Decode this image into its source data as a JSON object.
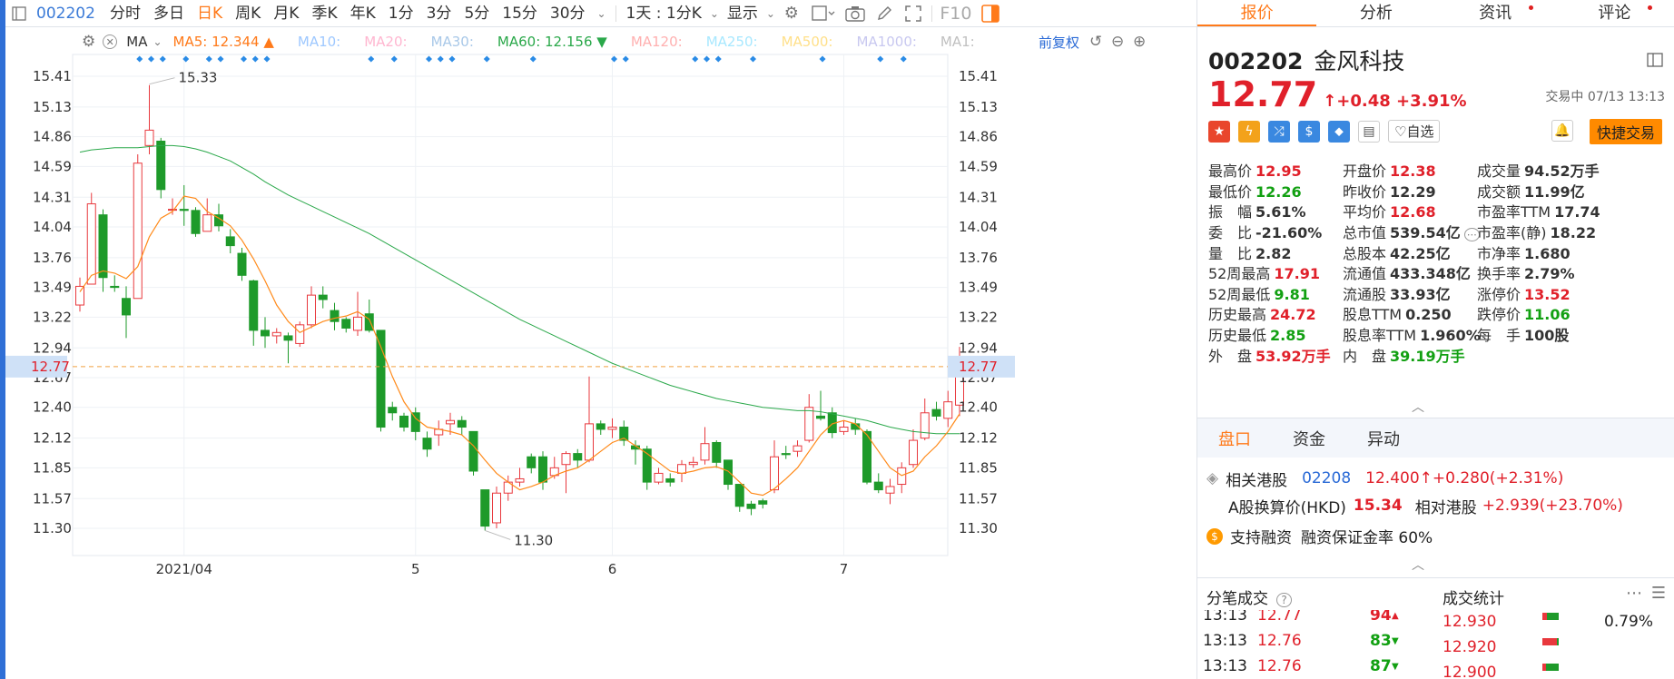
{
  "toolbar": {
    "code": "002202",
    "tabs": [
      "分时",
      "多日",
      "日K",
      "周K",
      "月K",
      "季K",
      "年K",
      "1分",
      "3分",
      "5分",
      "15分",
      "30分"
    ],
    "active_tab": "日K",
    "period_select": "1天 : 1分K",
    "display_label": "显示",
    "f10_label": "F10"
  },
  "ma_row": {
    "ma_select": "MA",
    "items": [
      {
        "label": "MA5: 12.344",
        "color": "#ff7a1a",
        "arrow": "▲"
      },
      {
        "label": "MA10:",
        "color": "#9ec8ff"
      },
      {
        "label": "MA20:",
        "color": "#ffb6d0"
      },
      {
        "label": "MA30:",
        "color": "#a8c8e8"
      },
      {
        "label": "MA60: 12.156",
        "color": "#2aa84a",
        "arrow": "▼"
      },
      {
        "label": "MA120:",
        "color": "#ffb0b0"
      },
      {
        "label": "MA250:",
        "color": "#a8e8ff"
      },
      {
        "label": "MA500:",
        "color": "#ffe08a"
      },
      {
        "label": "MA1000:",
        "color": "#c8c8f0"
      },
      {
        "label": "MA1:",
        "color": "#c0c0c0"
      }
    ],
    "adjust": "前复权"
  },
  "chart_data": {
    "type": "candlestick",
    "y_ticks": [
      15.41,
      15.13,
      14.86,
      14.59,
      14.31,
      14.04,
      13.76,
      13.49,
      13.22,
      12.94,
      12.67,
      12.4,
      12.12,
      11.85,
      11.57,
      11.3
    ],
    "current_price": 12.77,
    "current_price_label": "12.77",
    "x_labels": [
      {
        "label": "2021/04",
        "index": 9
      },
      {
        "label": "5",
        "index": 29
      },
      {
        "label": "6",
        "index": 46
      },
      {
        "label": "7",
        "index": 66
      }
    ],
    "high_marker": "15.33",
    "low_marker": "11.30",
    "candles": [
      [
        13.33,
        13.5,
        13.27,
        13.58
      ],
      [
        13.52,
        14.25,
        13.52,
        14.35
      ],
      [
        14.15,
        13.58,
        13.45,
        14.2
      ],
      [
        13.5,
        13.49,
        13.45,
        13.6
      ],
      [
        13.39,
        13.24,
        13.03,
        13.5
      ],
      [
        13.39,
        14.62,
        13.39,
        14.7
      ],
      [
        14.78,
        14.92,
        14.7,
        15.33
      ],
      [
        14.82,
        14.38,
        14.3,
        14.85
      ],
      [
        14.2,
        14.2,
        14.15,
        14.3
      ],
      [
        14.2,
        14.19,
        14.05,
        14.42
      ],
      [
        14.19,
        13.98,
        13.95,
        14.22
      ],
      [
        14.0,
        14.15,
        14.0,
        14.3
      ],
      [
        14.15,
        14.05,
        14.0,
        14.25
      ],
      [
        13.95,
        13.87,
        13.8,
        14.02
      ],
      [
        13.8,
        13.6,
        13.55,
        13.85
      ],
      [
        13.55,
        13.1,
        12.96,
        13.56
      ],
      [
        13.1,
        13.05,
        12.94,
        13.22
      ],
      [
        13.05,
        13.08,
        12.98,
        13.12
      ],
      [
        13.05,
        13.01,
        12.8,
        13.08
      ],
      [
        12.98,
        13.15,
        12.95,
        13.18
      ],
      [
        13.15,
        13.42,
        13.12,
        13.5
      ],
      [
        13.42,
        13.38,
        13.3,
        13.5
      ],
      [
        13.28,
        13.18,
        13.1,
        13.35
      ],
      [
        13.2,
        13.12,
        13.08,
        13.22
      ],
      [
        13.1,
        13.22,
        13.05,
        13.45
      ],
      [
        13.25,
        13.1,
        13.08,
        13.38
      ],
      [
        13.1,
        12.22,
        12.18,
        13.1
      ],
      [
        12.4,
        12.35,
        12.28,
        12.45
      ],
      [
        12.32,
        12.22,
        12.18,
        12.35
      ],
      [
        12.35,
        12.18,
        12.1,
        12.4
      ],
      [
        12.12,
        12.02,
        11.95,
        12.18
      ],
      [
        12.15,
        12.2,
        12.05,
        12.28
      ],
      [
        12.25,
        12.28,
        12.15,
        12.35
      ],
      [
        12.28,
        12.22,
        12.15,
        12.32
      ],
      [
        12.18,
        11.82,
        11.78,
        12.18
      ],
      [
        11.65,
        11.32,
        11.28,
        11.65
      ],
      [
        11.35,
        11.62,
        11.3,
        11.68
      ],
      [
        11.62,
        11.72,
        11.55,
        11.78
      ],
      [
        11.72,
        11.75,
        11.68,
        11.85
      ],
      [
        11.95,
        11.85,
        11.8,
        11.98
      ],
      [
        11.95,
        11.72,
        11.65,
        12.0
      ],
      [
        11.78,
        11.85,
        11.75,
        11.95
      ],
      [
        11.88,
        11.98,
        11.62,
        12.0
      ],
      [
        11.98,
        11.92,
        11.85,
        12.02
      ],
      [
        11.92,
        12.25,
        11.9,
        12.68
      ],
      [
        12.25,
        12.2,
        12.15,
        12.28
      ],
      [
        12.2,
        12.22,
        12.12,
        12.3
      ],
      [
        12.22,
        12.1,
        12.05,
        12.28
      ],
      [
        12.05,
        12.02,
        11.88,
        12.1
      ],
      [
        12.02,
        11.72,
        11.65,
        12.05
      ],
      [
        11.72,
        11.8,
        11.7,
        11.85
      ],
      [
        11.75,
        11.72,
        11.68,
        11.8
      ],
      [
        11.8,
        11.88,
        11.72,
        11.92
      ],
      [
        11.88,
        11.9,
        11.85,
        11.95
      ],
      [
        11.92,
        12.07,
        11.88,
        12.22
      ],
      [
        12.08,
        11.9,
        11.85,
        12.1
      ],
      [
        11.92,
        11.7,
        11.65,
        11.92
      ],
      [
        11.7,
        11.5,
        11.45,
        11.7
      ],
      [
        11.52,
        11.48,
        11.42,
        11.55
      ],
      [
        11.55,
        11.52,
        11.48,
        11.57
      ],
      [
        11.65,
        11.95,
        11.62,
        12.1
      ],
      [
        11.98,
        11.97,
        11.93,
        12.05
      ],
      [
        12.0,
        12.05,
        11.95,
        12.1
      ],
      [
        12.1,
        12.4,
        12.08,
        12.52
      ],
      [
        12.32,
        12.3,
        12.28,
        12.55
      ],
      [
        12.35,
        12.17,
        12.12,
        12.4
      ],
      [
        12.18,
        12.22,
        12.15,
        12.28
      ],
      [
        12.25,
        12.2,
        12.15,
        12.3
      ],
      [
        12.18,
        11.72,
        11.7,
        12.2
      ],
      [
        11.72,
        11.65,
        11.62,
        11.8
      ],
      [
        11.62,
        11.68,
        11.52,
        11.75
      ],
      [
        11.7,
        11.85,
        11.62,
        11.9
      ],
      [
        11.88,
        12.1,
        11.85,
        12.2
      ],
      [
        12.12,
        12.35,
        12.1,
        12.48
      ],
      [
        12.38,
        12.32,
        12.28,
        12.45
      ],
      [
        12.3,
        12.45,
        12.22,
        12.55
      ],
      [
        12.42,
        12.77,
        12.32,
        12.95
      ]
    ],
    "ma5": [
      13.45,
      13.6,
      13.64,
      13.62,
      13.57,
      13.68,
      13.95,
      14.12,
      14.18,
      14.32,
      14.3,
      14.18,
      14.12,
      14.05,
      13.92,
      13.75,
      13.55,
      13.33,
      13.18,
      13.08,
      13.13,
      13.18,
      13.21,
      13.23,
      13.27,
      13.2,
      12.95,
      12.68,
      12.45,
      12.3,
      12.22,
      12.2,
      12.18,
      12.15,
      12.05,
      11.92,
      11.8,
      11.72,
      11.65,
      11.68,
      11.72,
      11.78,
      11.82,
      11.85,
      11.92,
      12.0,
      12.08,
      12.12,
      12.05,
      11.98,
      11.9,
      11.82,
      11.8,
      11.82,
      11.85,
      11.86,
      11.82,
      11.72,
      11.62,
      11.6,
      11.66,
      11.75,
      11.85,
      12.0,
      12.15,
      12.25,
      12.28,
      12.25,
      12.15,
      12.0,
      11.85,
      11.78,
      11.82,
      11.95,
      12.05,
      12.18,
      12.34
    ],
    "ma60": [
      14.72,
      14.74,
      14.75,
      14.76,
      14.76,
      14.76,
      14.77,
      14.78,
      14.78,
      14.77,
      14.75,
      14.72,
      14.68,
      14.64,
      14.58,
      14.52,
      14.45,
      14.39,
      14.33,
      14.28,
      14.23,
      14.18,
      14.13,
      14.08,
      14.03,
      13.98,
      13.92,
      13.86,
      13.8,
      13.74,
      13.68,
      13.62,
      13.56,
      13.5,
      13.44,
      13.38,
      13.32,
      13.26,
      13.2,
      13.15,
      13.1,
      13.05,
      13.0,
      12.95,
      12.9,
      12.85,
      12.8,
      12.76,
      12.72,
      12.68,
      12.64,
      12.6,
      12.57,
      12.54,
      12.51,
      12.48,
      12.46,
      12.44,
      12.42,
      12.4,
      12.39,
      12.38,
      12.37,
      12.37,
      12.36,
      12.34,
      12.32,
      12.3,
      12.28,
      12.25,
      12.22,
      12.2,
      12.18,
      12.17,
      12.16,
      12.16,
      12.16
    ]
  },
  "panel": {
    "tabs": [
      "报价",
      "分析",
      "资讯",
      "评论"
    ],
    "code": "002202",
    "name": "金风科技",
    "price": "12.77",
    "change": "↑+0.48 +3.91%",
    "status": "交易中 07/13 13:13",
    "watch_label": "♡自选",
    "quick_trade": "快捷交易",
    "stats": [
      [
        [
          "最高价",
          "12.95",
          "red"
        ],
        [
          "开盘价",
          "12.38",
          "red"
        ],
        [
          "成交量",
          "94.52万手",
          "dark"
        ]
      ],
      [
        [
          "最低价",
          "12.26",
          "green"
        ],
        [
          "昨收价",
          "12.29",
          "dark"
        ],
        [
          "成交额",
          "11.99亿",
          "dark"
        ]
      ],
      [
        [
          "振　幅",
          "5.61%",
          "dark"
        ],
        [
          "平均价",
          "12.68",
          "red"
        ],
        [
          "市盈率TTM",
          "17.74",
          "dark"
        ]
      ],
      [
        [
          "委　比",
          "-21.60%",
          "dark"
        ],
        [
          "总市值",
          "539.54亿",
          "dark"
        ],
        [
          "市盈率(静)",
          "18.22",
          "dark"
        ]
      ],
      [
        [
          "量　比",
          "2.82",
          "dark"
        ],
        [
          "总股本",
          "42.25亿",
          "dark"
        ],
        [
          "市净率",
          "1.680",
          "dark"
        ]
      ],
      [
        [
          "52周最高",
          "17.91",
          "red"
        ],
        [
          "流通值",
          "433.348亿",
          "dark"
        ],
        [
          "换手率",
          "2.79%",
          "dark"
        ]
      ],
      [
        [
          "52周最低",
          "9.81",
          "green"
        ],
        [
          "流通股",
          "33.93亿",
          "dark"
        ],
        [
          "涨停价",
          "13.52",
          "red"
        ]
      ],
      [
        [
          "历史最高",
          "24.72",
          "red"
        ],
        [
          "股息TTM",
          "0.250",
          "dark"
        ],
        [
          "跌停价",
          "11.06",
          "green"
        ]
      ],
      [
        [
          "历史最低",
          "2.85",
          "green"
        ],
        [
          "股息率TTM",
          "1.960%",
          "dark"
        ],
        [
          "每　手",
          "100股",
          "dark"
        ]
      ],
      [
        [
          "外　盘",
          "53.92万手",
          "red"
        ],
        [
          "内　盘",
          "39.19万手",
          "green"
        ],
        [
          "",
          "",
          "dark"
        ]
      ]
    ],
    "subtabs": [
      "盘口",
      "资金",
      "异动"
    ],
    "hk": {
      "label": "相关港股",
      "code": "02208",
      "price": "12.400↑+0.280(+2.31%)",
      "calc_label": "A股换算价(HKD)",
      "calc_value": "15.34",
      "rel_label": "相对港股",
      "rel_value": "+2.939(+23.70%)"
    },
    "margin": {
      "coin": "$",
      "label": "支持融资",
      "ratio": "融资保证金率 60%"
    },
    "tick_title": "分笔成交",
    "stat_title": "成交统计",
    "ticks": [
      {
        "time": "13:13",
        "price": "12.77",
        "vol": "94",
        "dir": "up"
      },
      {
        "time": "13:13",
        "price": "12.76",
        "vol": "83",
        "dir": "down"
      },
      {
        "time": "13:13",
        "price": "12.76",
        "vol": "87",
        "dir": "down"
      }
    ],
    "stat_rows": [
      {
        "price": "12.930",
        "pct": "0.79%",
        "bar_red": 0.3,
        "bar_green": 0.7
      },
      {
        "price": "12.920",
        "pct": "",
        "bar_red": 0.9,
        "bar_green": 0.1
      },
      {
        "price": "12.900",
        "pct": "",
        "bar_red": 0.2,
        "bar_green": 0.8
      }
    ]
  }
}
